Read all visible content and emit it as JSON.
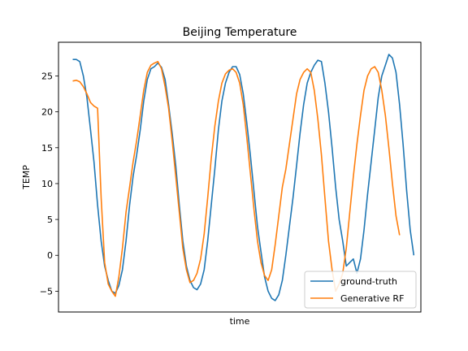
{
  "chart_data": {
    "type": "line",
    "title": "Beijing Temperature",
    "xlabel": "time",
    "ylabel": "TEMP",
    "ylim": [
      -7.9,
      29.7
    ],
    "xlim": [
      -2,
      100
    ],
    "yticks": [
      -5,
      0,
      5,
      10,
      15,
      20,
      25
    ],
    "xticks_visible": false,
    "grid": false,
    "legend_position": "lower-right",
    "series": [
      {
        "name": "ground-truth",
        "color": "#1f77b4",
        "points": [
          [
            2,
            27.3
          ],
          [
            3,
            27.3
          ],
          [
            4,
            27.0
          ],
          [
            5,
            25.0
          ],
          [
            6,
            22.0
          ],
          [
            7,
            17.5
          ],
          [
            8,
            13.0
          ],
          [
            9,
            7.0
          ],
          [
            10,
            2.0
          ],
          [
            11,
            -1.5
          ],
          [
            12,
            -3.5
          ],
          [
            13,
            -5.0
          ],
          [
            14,
            -5.3
          ],
          [
            15,
            -4.2
          ],
          [
            16,
            -2.0
          ],
          [
            17,
            2.0
          ],
          [
            18,
            7.0
          ],
          [
            19,
            11.0
          ],
          [
            20,
            14.0
          ],
          [
            21,
            17.5
          ],
          [
            22,
            21.5
          ],
          [
            23,
            24.5
          ],
          [
            24,
            26.0
          ],
          [
            25,
            26.3
          ],
          [
            26,
            26.8
          ],
          [
            27,
            26.2
          ],
          [
            28,
            24.5
          ],
          [
            29,
            21.0
          ],
          [
            30,
            17.0
          ],
          [
            31,
            12.5
          ],
          [
            32,
            7.0
          ],
          [
            33,
            2.0
          ],
          [
            34,
            -1.5
          ],
          [
            35,
            -3.5
          ],
          [
            36,
            -4.5
          ],
          [
            37,
            -4.8
          ],
          [
            38,
            -4.0
          ],
          [
            39,
            -2.0
          ],
          [
            40,
            2.0
          ],
          [
            41,
            7.0
          ],
          [
            42,
            12.0
          ],
          [
            43,
            17.5
          ],
          [
            44,
            21.5
          ],
          [
            45,
            24.0
          ],
          [
            46,
            25.5
          ],
          [
            47,
            26.3
          ],
          [
            48,
            26.3
          ],
          [
            49,
            25.2
          ],
          [
            50,
            22.5
          ],
          [
            51,
            18.5
          ],
          [
            52,
            14.0
          ],
          [
            53,
            9.0
          ],
          [
            54,
            4.0
          ],
          [
            55,
            0.5
          ],
          [
            56,
            -3.0
          ],
          [
            57,
            -5.0
          ],
          [
            58,
            -6.0
          ],
          [
            59,
            -6.3
          ],
          [
            60,
            -5.5
          ],
          [
            61,
            -3.5
          ],
          [
            62,
            0.0
          ],
          [
            63,
            4.0
          ],
          [
            64,
            8.0
          ],
          [
            65,
            12.5
          ],
          [
            66,
            17.0
          ],
          [
            67,
            21.0
          ],
          [
            68,
            24.0
          ],
          [
            69,
            25.5
          ],
          [
            70,
            26.5
          ],
          [
            71,
            27.2
          ],
          [
            72,
            27.0
          ],
          [
            73,
            24.0
          ],
          [
            74,
            20.0
          ],
          [
            75,
            15.0
          ],
          [
            76,
            9.5
          ],
          [
            77,
            5.0
          ],
          [
            78,
            2.0
          ],
          [
            79,
            -1.5
          ],
          [
            80,
            -1.0
          ],
          [
            81,
            -0.5
          ],
          [
            82,
            -2.5
          ],
          [
            83,
            -0.5
          ],
          [
            84,
            3.5
          ],
          [
            85,
            8.5
          ],
          [
            86,
            13.0
          ],
          [
            87,
            17.5
          ],
          [
            88,
            22.0
          ],
          [
            89,
            25.0
          ],
          [
            90,
            26.5
          ],
          [
            91,
            28.0
          ],
          [
            92,
            27.5
          ],
          [
            93,
            25.5
          ],
          [
            94,
            21.0
          ],
          [
            95,
            15.5
          ],
          [
            96,
            9.0
          ],
          [
            97,
            3.5
          ],
          [
            98,
            0.0
          ]
        ]
      },
      {
        "name": "Generative RF",
        "color": "#ff7f0e",
        "points": [
          [
            2,
            24.3
          ],
          [
            3,
            24.4
          ],
          [
            4,
            24.2
          ],
          [
            5,
            23.5
          ],
          [
            6,
            22.5
          ],
          [
            7,
            21.3
          ],
          [
            8,
            20.8
          ],
          [
            9,
            20.5
          ],
          [
            10,
            8.0
          ],
          [
            11,
            -1.0
          ],
          [
            12,
            -4.0
          ],
          [
            13,
            -5.0
          ],
          [
            14,
            -5.7
          ],
          [
            15,
            -3.0
          ],
          [
            16,
            1.0
          ],
          [
            17,
            6.0
          ],
          [
            18,
            9.5
          ],
          [
            19,
            13.0
          ],
          [
            20,
            16.0
          ],
          [
            21,
            19.5
          ],
          [
            22,
            23.0
          ],
          [
            23,
            25.5
          ],
          [
            24,
            26.5
          ],
          [
            25,
            26.8
          ],
          [
            26,
            27.0
          ],
          [
            27,
            26.0
          ],
          [
            28,
            23.5
          ],
          [
            29,
            20.5
          ],
          [
            30,
            16.0
          ],
          [
            31,
            11.0
          ],
          [
            32,
            6.0
          ],
          [
            33,
            1.0
          ],
          [
            34,
            -2.0
          ],
          [
            35,
            -3.8
          ],
          [
            36,
            -3.5
          ],
          [
            37,
            -2.5
          ],
          [
            38,
            -0.5
          ],
          [
            39,
            3.0
          ],
          [
            40,
            8.0
          ],
          [
            41,
            13.5
          ],
          [
            42,
            18.0
          ],
          [
            43,
            21.5
          ],
          [
            44,
            24.0
          ],
          [
            45,
            25.3
          ],
          [
            46,
            25.8
          ],
          [
            47,
            26.0
          ],
          [
            48,
            25.5
          ],
          [
            49,
            24.0
          ],
          [
            50,
            21.0
          ],
          [
            51,
            16.5
          ],
          [
            52,
            11.5
          ],
          [
            53,
            6.5
          ],
          [
            54,
            2.0
          ],
          [
            55,
            -1.0
          ],
          [
            56,
            -2.8
          ],
          [
            57,
            -3.5
          ],
          [
            58,
            -2.0
          ],
          [
            59,
            1.5
          ],
          [
            60,
            5.5
          ],
          [
            61,
            9.5
          ],
          [
            62,
            12.0
          ],
          [
            63,
            15.5
          ],
          [
            64,
            19.0
          ],
          [
            65,
            22.5
          ],
          [
            66,
            24.5
          ],
          [
            67,
            25.5
          ],
          [
            68,
            26.0
          ],
          [
            69,
            25.5
          ],
          [
            70,
            23.0
          ],
          [
            71,
            19.0
          ],
          [
            72,
            14.0
          ],
          [
            73,
            8.0
          ],
          [
            74,
            2.0
          ],
          [
            75,
            -2.0
          ],
          [
            76,
            -5.0
          ],
          [
            77,
            -4.0
          ],
          [
            78,
            -2.5
          ],
          [
            79,
            1.0
          ],
          [
            80,
            6.0
          ],
          [
            81,
            11.0
          ],
          [
            82,
            15.5
          ],
          [
            83,
            19.5
          ],
          [
            84,
            23.0
          ],
          [
            85,
            25.0
          ],
          [
            86,
            26.0
          ],
          [
            87,
            26.3
          ],
          [
            88,
            25.5
          ],
          [
            89,
            23.0
          ],
          [
            90,
            19.5
          ],
          [
            91,
            15.0
          ],
          [
            92,
            10.0
          ],
          [
            93,
            5.5
          ],
          [
            94,
            2.8
          ]
        ]
      }
    ]
  }
}
